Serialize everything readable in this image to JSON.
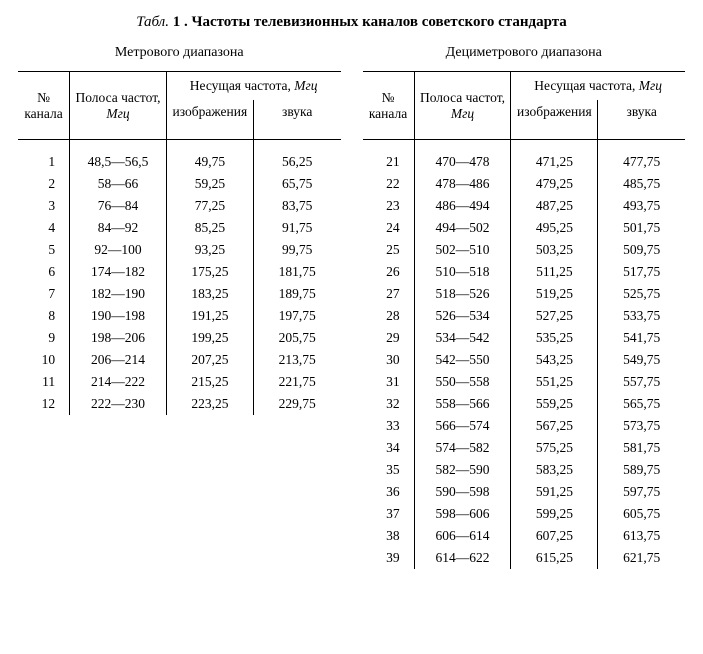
{
  "caption": {
    "label": "Табл.",
    "number": "1",
    "title": ". Частоты телевизионных каналов советского стандарта"
  },
  "headers": {
    "channel": "№ канала",
    "band": "Полоса частот,",
    "band_unit_m": "Мгц",
    "band_unit_d": "Мгц",
    "carrier": "Несущая частота,",
    "carrier_unit": "Мгц",
    "image": "изображения",
    "image_d": "изображения",
    "sound": "звука"
  },
  "left": {
    "subtitle": "Метрового диапазона",
    "rows": [
      {
        "n": "1",
        "band": "48,5—56,5",
        "img": "49,75",
        "snd": "56,25"
      },
      {
        "n": "2",
        "band": "58—66",
        "img": "59,25",
        "snd": "65,75"
      },
      {
        "n": "3",
        "band": "76—84",
        "img": "77,25",
        "snd": "83,75"
      },
      {
        "n": "4",
        "band": "84—92",
        "img": "85,25",
        "snd": "91,75"
      },
      {
        "n": "5",
        "band": "92—100",
        "img": "93,25",
        "snd": "99,75"
      },
      {
        "n": "6",
        "band": "174—182",
        "img": "175,25",
        "snd": "181,75"
      },
      {
        "n": "7",
        "band": "182—190",
        "img": "183,25",
        "snd": "189,75"
      },
      {
        "n": "8",
        "band": "190—198",
        "img": "191,25",
        "snd": "197,75"
      },
      {
        "n": "9",
        "band": "198—206",
        "img": "199,25",
        "snd": "205,75"
      },
      {
        "n": "10",
        "band": "206—214",
        "img": "207,25",
        "snd": "213,75"
      },
      {
        "n": "11",
        "band": "214—222",
        "img": "215,25",
        "snd": "221,75"
      },
      {
        "n": "12",
        "band": "222—230",
        "img": "223,25",
        "snd": "229,75"
      }
    ]
  },
  "right": {
    "subtitle": "Дециметрового диапазона",
    "rows": [
      {
        "n": "21",
        "band": "470—478",
        "img": "471,25",
        "snd": "477,75"
      },
      {
        "n": "22",
        "band": "478—486",
        "img": "479,25",
        "snd": "485,75"
      },
      {
        "n": "23",
        "band": "486—494",
        "img": "487,25",
        "snd": "493,75"
      },
      {
        "n": "24",
        "band": "494—502",
        "img": "495,25",
        "snd": "501,75"
      },
      {
        "n": "25",
        "band": "502—510",
        "img": "503,25",
        "snd": "509,75"
      },
      {
        "n": "26",
        "band": "510—518",
        "img": "511,25",
        "snd": "517,75"
      },
      {
        "n": "27",
        "band": "518—526",
        "img": "519,25",
        "snd": "525,75"
      },
      {
        "n": "28",
        "band": "526—534",
        "img": "527,25",
        "snd": "533,75"
      },
      {
        "n": "29",
        "band": "534—542",
        "img": "535,25",
        "snd": "541,75"
      },
      {
        "n": "30",
        "band": "542—550",
        "img": "543,25",
        "snd": "549,75"
      },
      {
        "n": "31",
        "band": "550—558",
        "img": "551,25",
        "snd": "557,75"
      },
      {
        "n": "32",
        "band": "558—566",
        "img": "559,25",
        "snd": "565,75"
      },
      {
        "n": "33",
        "band": "566—574",
        "img": "567,25",
        "snd": "573,75"
      },
      {
        "n": "34",
        "band": "574—582",
        "img": "575,25",
        "snd": "581,75"
      },
      {
        "n": "35",
        "band": "582—590",
        "img": "583,25",
        "snd": "589,75"
      },
      {
        "n": "36",
        "band": "590—598",
        "img": "591,25",
        "snd": "597,75"
      },
      {
        "n": "37",
        "band": "598—606",
        "img": "599,25",
        "snd": "605,75"
      },
      {
        "n": "38",
        "band": "606—614",
        "img": "607,25",
        "snd": "613,75"
      },
      {
        "n": "39",
        "band": "614—622",
        "img": "615,25",
        "snd": "621,75"
      }
    ]
  }
}
